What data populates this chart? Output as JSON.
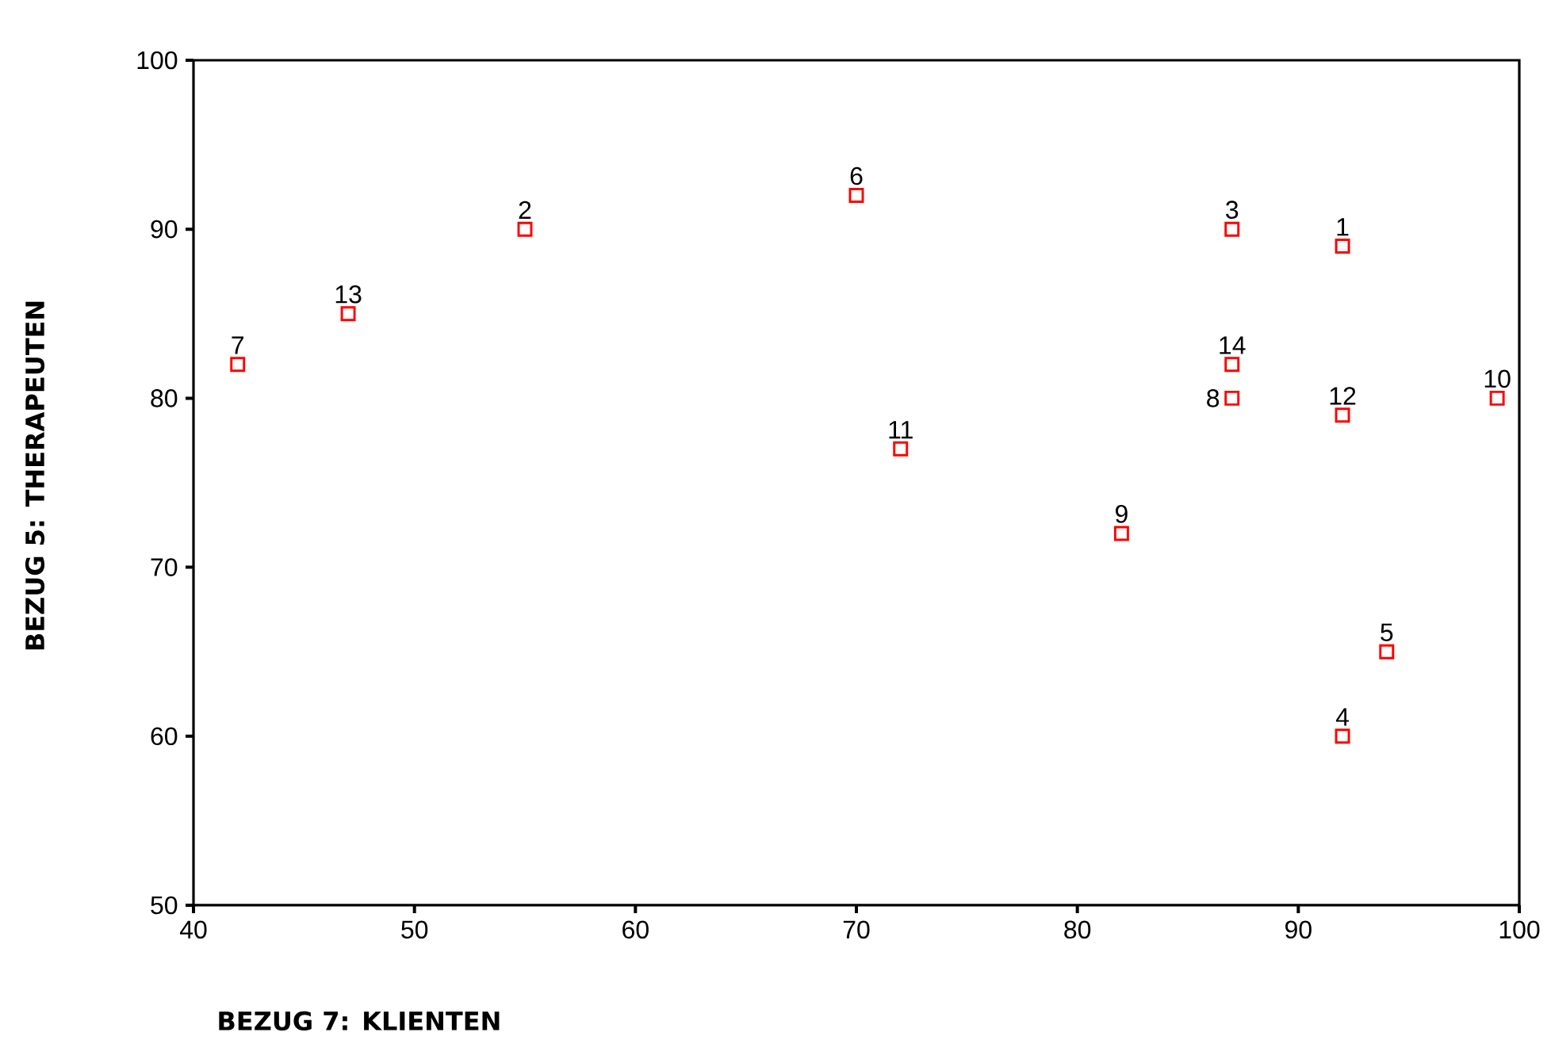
{
  "chart_data": {
    "type": "scatter",
    "xlabel": "BEZUG 7: KLIENTEN",
    "ylabel": "BEZUG 5: THERAPEUTEN",
    "x": [
      92,
      55,
      87,
      92,
      94,
      70,
      42,
      87,
      82,
      99,
      72,
      92,
      47,
      87
    ],
    "series": [
      {
        "color": "#ff0000",
        "values": [
          89,
          90,
          90,
          60,
          65,
          92,
          82,
          80,
          72,
          80,
          77,
          79,
          85,
          82
        ]
      }
    ],
    "xlim": [
      40,
      100
    ],
    "ylim": [
      50,
      100
    ],
    "xticks": [
      40,
      50,
      60,
      70,
      80,
      90,
      100
    ],
    "yticks": [
      50,
      60,
      70,
      80,
      90,
      100
    ],
    "marker": "square",
    "annotations": [
      {
        "text": "1",
        "x": 92,
        "y": 89
      },
      {
        "text": "2",
        "x": 55,
        "y": 90
      },
      {
        "text": "3",
        "x": 87,
        "y": 90
      },
      {
        "text": "4",
        "x": 92,
        "y": 60
      },
      {
        "text": "5",
        "x": 94,
        "y": 65
      },
      {
        "text": "6",
        "x": 70,
        "y": 92
      },
      {
        "text": "7",
        "x": 42,
        "y": 82
      },
      {
        "text": "8",
        "x": 87,
        "y": 80
      },
      {
        "text": "9",
        "x": 82,
        "y": 72
      },
      {
        "text": "10",
        "x": 99,
        "y": 80
      },
      {
        "text": "11",
        "x": 72,
        "y": 77
      },
      {
        "text": "12",
        "x": 92,
        "y": 79
      },
      {
        "text": "13",
        "x": 47,
        "y": 85
      },
      {
        "text": "14",
        "x": 87,
        "y": 82
      }
    ]
  }
}
